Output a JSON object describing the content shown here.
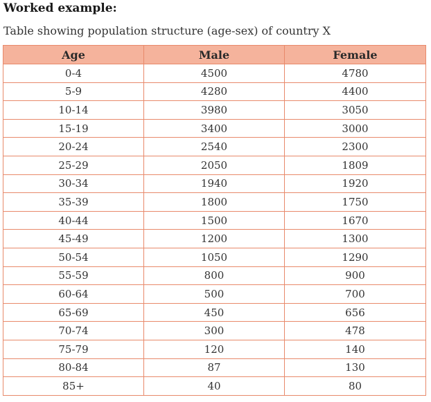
{
  "heading": "Worked example:",
  "caption": "Table showing population structure (age-sex) of country X",
  "table": {
    "headers": {
      "age": "Age",
      "male": "Male",
      "female": "Female"
    },
    "rows": [
      {
        "age": "0-4",
        "male": "4500",
        "female": "4780"
      },
      {
        "age": "5-9",
        "male": "4280",
        "female": "4400"
      },
      {
        "age": "10-14",
        "male": "3980",
        "female": "3050"
      },
      {
        "age": "15-19",
        "male": "3400",
        "female": "3000"
      },
      {
        "age": "20-24",
        "male": "2540",
        "female": "2300"
      },
      {
        "age": "25-29",
        "male": "2050",
        "female": "1809"
      },
      {
        "age": "30-34",
        "male": "1940",
        "female": "1920"
      },
      {
        "age": "35-39",
        "male": "1800",
        "female": "1750"
      },
      {
        "age": "40-44",
        "male": "1500",
        "female": "1670"
      },
      {
        "age": "45-49",
        "male": "1200",
        "female": "1300"
      },
      {
        "age": "50-54",
        "male": "1050",
        "female": "1290"
      },
      {
        "age": "55-59",
        "male": "800",
        "female": "900"
      },
      {
        "age": "60-64",
        "male": "500",
        "female": "700"
      },
      {
        "age": "65-69",
        "male": "450",
        "female": "656"
      },
      {
        "age": "70-74",
        "male": "300",
        "female": "478"
      },
      {
        "age": "75-79",
        "male": "120",
        "female": "140"
      },
      {
        "age": "80-84",
        "male": "87",
        "female": "130"
      },
      {
        "age": "85+",
        "male": "40",
        "female": "80"
      }
    ]
  }
}
